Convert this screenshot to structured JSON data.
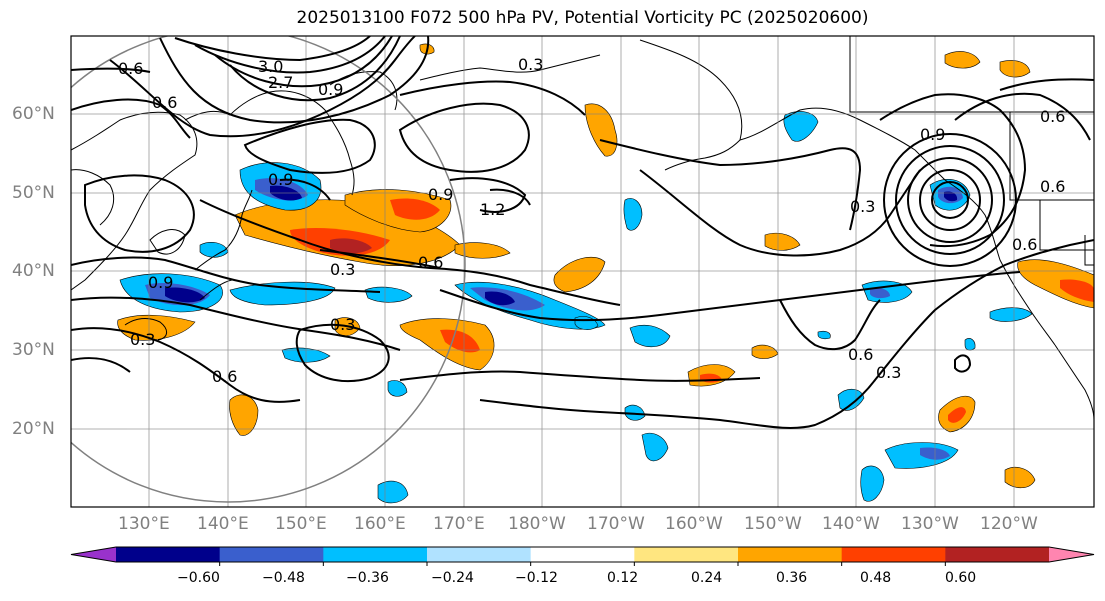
{
  "title": "2025013100 F072 500 hPa PV, Potential Vorticity PC (2025020600)",
  "lat_labels": [
    "60°N",
    "50°N",
    "40°N",
    "30°N",
    "20°N"
  ],
  "lon_labels": [
    "130°E",
    "140°E",
    "150°E",
    "160°E",
    "170°E",
    "180°W",
    "170°W",
    "160°W",
    "150°W",
    "140°W",
    "130°W",
    "120°W"
  ],
  "contour_labels": [
    "0.6",
    "3.0",
    "2.7",
    "0.9",
    "0.3",
    "0.6",
    "0.9",
    "1.2",
    "0.9",
    "0.6",
    "0.3",
    "0.6",
    "0.9",
    "0.3",
    "0.6",
    "0.6",
    "0.3",
    "0.9",
    "0.6",
    "0.6",
    "0.3",
    "0.3"
  ],
  "colorbar": {
    "ticks": [
      "−0.60",
      "−0.48",
      "−0.36",
      "−0.24",
      "−0.12",
      "0.12",
      "0.24",
      "0.36",
      "0.48",
      "0.60"
    ],
    "colors": [
      "#9932cc",
      "#00008b",
      "#3a5fcd",
      "#00bfff",
      "#b0e2ff",
      "#ffffff",
      "#ffe680",
      "#ffa500",
      "#ff4000",
      "#b22222",
      "#ff85b0"
    ]
  }
}
